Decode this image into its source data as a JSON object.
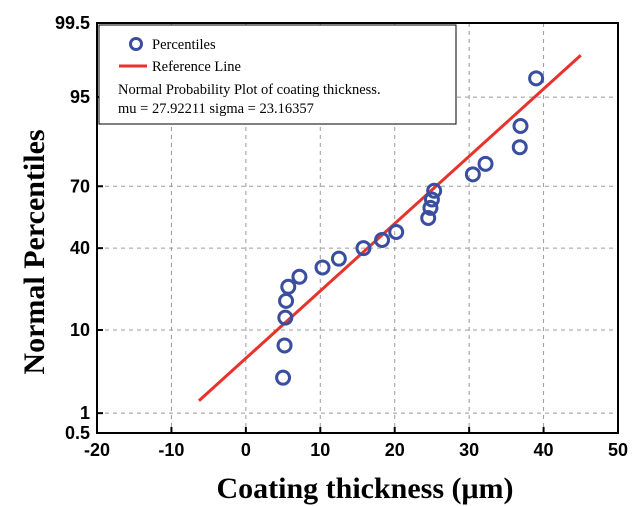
{
  "chart_data": {
    "type": "scatter",
    "xlabel": "Coating thickness (μm)",
    "ylabel": "Normal Percentiles",
    "xlim": [
      -20,
      50
    ],
    "x_ticks": [
      -20,
      -10,
      0,
      10,
      20,
      30,
      40,
      50
    ],
    "y_scale": "normal-probability",
    "y_ticks": [
      {
        "label": "0.5",
        "value": 0.5
      },
      {
        "label": "1",
        "value": 1
      },
      {
        "label": "10",
        "value": 10
      },
      {
        "label": "40",
        "value": 40
      },
      {
        "label": "70",
        "value": 70
      },
      {
        "label": "95",
        "value": 95
      },
      {
        "label": "99.5",
        "value": 99.5
      }
    ],
    "grid": true,
    "legend_position": "top-left",
    "legend": {
      "percentiles_label": "Percentiles",
      "reference_label": "Reference Line",
      "note_line1": "Normal Probability Plot of  coating thickness.",
      "note_line2": "mu = 27.92211  sigma = 23.16357"
    },
    "colors": {
      "points": "#3a4ea0",
      "reference": "#e8322c"
    },
    "series": [
      {
        "name": "Percentiles",
        "type": "scatter",
        "points": [
          {
            "x": 5.0,
            "y": 3.0
          },
          {
            "x": 5.2,
            "y": 7.0
          },
          {
            "x": 5.3,
            "y": 13.0
          },
          {
            "x": 5.4,
            "y": 18.0
          },
          {
            "x": 5.7,
            "y": 23.0
          },
          {
            "x": 7.2,
            "y": 27.0
          },
          {
            "x": 10.3,
            "y": 31.0
          },
          {
            "x": 12.5,
            "y": 35.0
          },
          {
            "x": 15.8,
            "y": 40.0
          },
          {
            "x": 18.3,
            "y": 44.0
          },
          {
            "x": 20.2,
            "y": 48.0
          },
          {
            "x": 24.5,
            "y": 55.0
          },
          {
            "x": 24.8,
            "y": 60.0
          },
          {
            "x": 25.0,
            "y": 64.0
          },
          {
            "x": 25.3,
            "y": 68.0
          },
          {
            "x": 30.5,
            "y": 75.0
          },
          {
            "x": 32.2,
            "y": 79.0
          },
          {
            "x": 36.8,
            "y": 84.5
          },
          {
            "x": 36.9,
            "y": 90.0
          },
          {
            "x": 39.0,
            "y": 97.0
          }
        ]
      },
      {
        "name": "Reference Line",
        "type": "line",
        "points": [
          {
            "x": -6.3,
            "y": 1.5
          },
          {
            "x": 45.0,
            "y": 98.5
          }
        ]
      }
    ]
  }
}
